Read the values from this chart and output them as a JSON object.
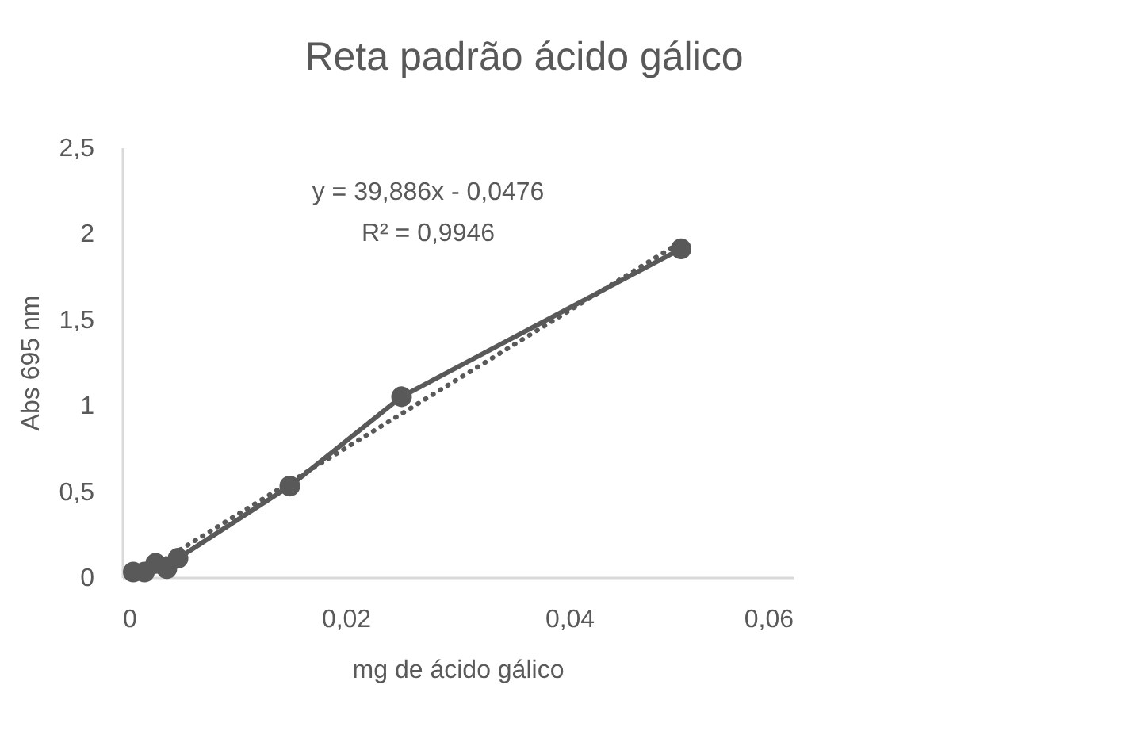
{
  "chart_data": {
    "type": "line",
    "title": "Reta padrão ácido gálico",
    "xlabel": "mg de ácido gálico",
    "ylabel": "Abs 695 nm",
    "annotations": [
      "y = 39,886x - 0,0476",
      "R² = 0,9946"
    ],
    "x": [
      0.001,
      0.002,
      0.003,
      0.004,
      0.005,
      0.015,
      0.025,
      0.05
    ],
    "series": [
      {
        "color": "#595959",
        "values": [
          0.03,
          0.03,
          0.08,
          0.05,
          0.11,
          0.53,
          1.05,
          1.91
        ]
      },
      {
        "type": "line",
        "x": [
          0.0012,
          0.05
        ],
        "values": [
          0,
          1.95
        ],
        "color": "#595959",
        "marker": "none",
        "line_style": "dotted"
      }
    ],
    "marker": "circle",
    "line_style": "solid",
    "xlim": [
      0,
      0.06
    ],
    "xticks": [
      0,
      {
        "value": 0.02,
        "label": "0,02"
      },
      {
        "value": 0.04,
        "label": "0,04"
      },
      {
        "value": 0.06,
        "label": "0,06"
      }
    ],
    "ylim": [
      0,
      2.5
    ],
    "yticks": [
      0,
      {
        "value": 0.5,
        "label": "0,5"
      },
      1,
      {
        "value": 1.5,
        "label": "1,5"
      },
      2,
      {
        "value": 2.5,
        "label": "2,5"
      }
    ]
  }
}
